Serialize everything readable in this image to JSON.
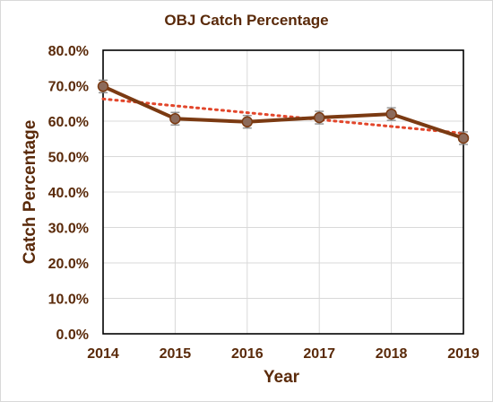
{
  "chart_data": {
    "type": "line",
    "title": "OBJ Catch Percentage",
    "xlabel": "Year",
    "ylabel": "Catch Percentage",
    "categories": [
      "2014",
      "2015",
      "2016",
      "2017",
      "2018",
      "2019"
    ],
    "ylim": [
      0,
      0.8
    ],
    "yticks": [
      "0.0%",
      "10.0%",
      "20.0%",
      "30.0%",
      "40.0%",
      "50.0%",
      "60.0%",
      "70.0%",
      "80.0%"
    ],
    "grid": true,
    "legend": "none",
    "series": [
      {
        "values": [
          0.698,
          0.607,
          0.598,
          0.61,
          0.62,
          0.552
        ],
        "color": "#7b3a12",
        "marker_color": "#8c6a5a",
        "error_bars": true
      }
    ],
    "trendline": {
      "type": "linear",
      "style": "dotted",
      "color": "#e2462b"
    }
  }
}
